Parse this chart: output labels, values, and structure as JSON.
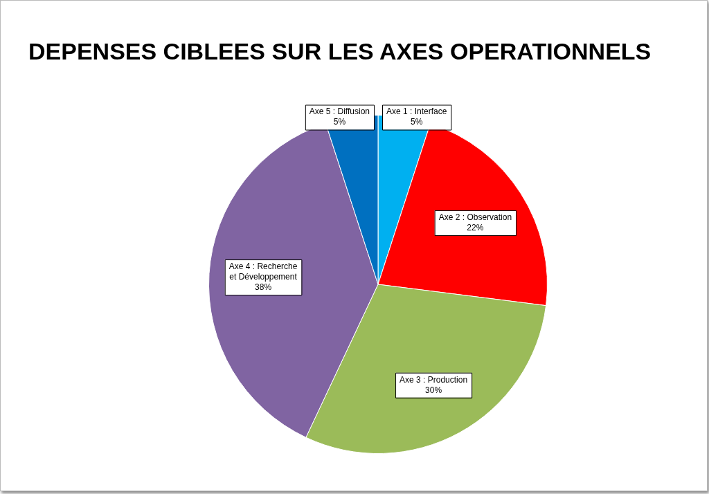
{
  "chart_data": {
    "type": "pie",
    "title": "DEPENSES CIBLEES SUR LES AXES OPERATIONNELS",
    "categories": [
      "Axe 1 : Interface",
      "Axe 2 : Observation",
      "Axe 3 : Production",
      "Axe 4 : Recherche et Développement",
      "Axe 5 : Diffusion"
    ],
    "values": [
      5,
      22,
      30,
      38,
      5
    ],
    "value_labels": [
      "5%",
      "22%",
      "30%",
      "38%",
      "5%"
    ],
    "colors": [
      "#00b0f0",
      "#ff0000",
      "#9bbb59",
      "#8064a2",
      "#0070c0"
    ],
    "legend": false
  }
}
